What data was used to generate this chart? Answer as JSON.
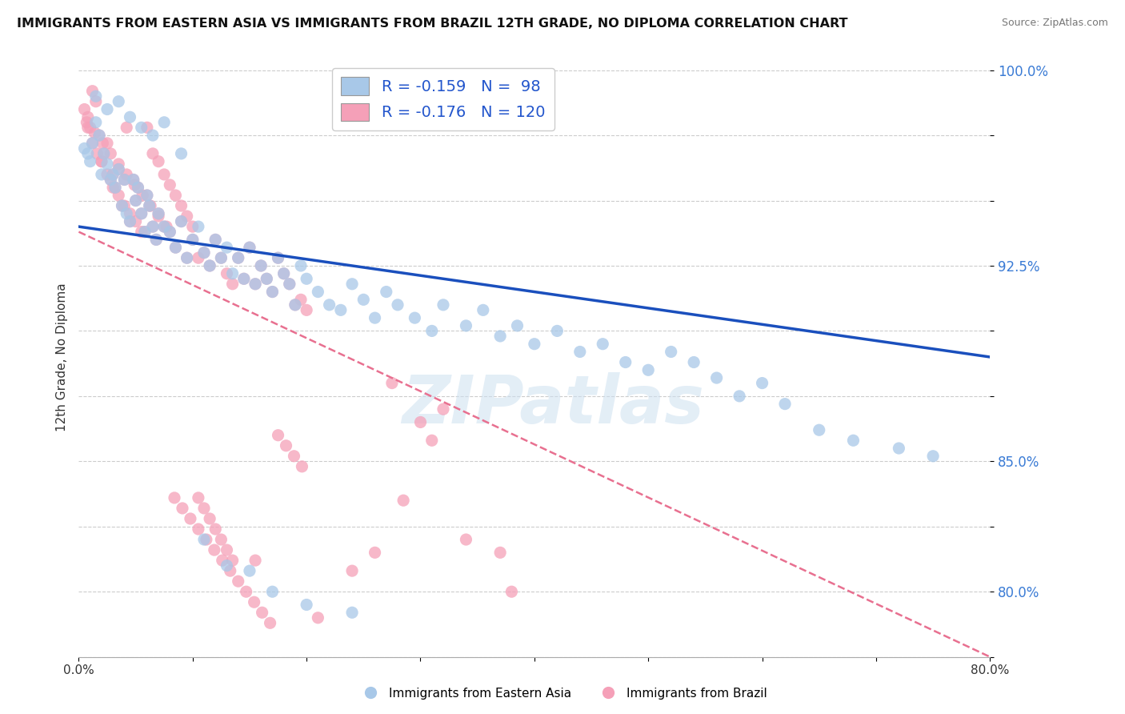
{
  "title": "IMMIGRANTS FROM EASTERN ASIA VS IMMIGRANTS FROM BRAZIL 12TH GRADE, NO DIPLOMA CORRELATION CHART",
  "source": "Source: ZipAtlas.com",
  "ylabel": "12th Grade, No Diploma",
  "x_min": 0.0,
  "x_max": 0.8,
  "y_min": 0.775,
  "y_max": 1.005,
  "ytick_positions": [
    0.775,
    0.8,
    0.825,
    0.85,
    0.875,
    0.9,
    0.925,
    0.95,
    0.975,
    1.0
  ],
  "ytick_labels": [
    "",
    "80.0%",
    "",
    "85.0%",
    "",
    "",
    "92.5%",
    "",
    "",
    "100.0%"
  ],
  "xtick_positions": [
    0.0,
    0.1,
    0.2,
    0.3,
    0.4,
    0.5,
    0.6,
    0.7,
    0.8
  ],
  "xtick_labels": [
    "0.0%",
    "",
    "",
    "",
    "",
    "",
    "",
    "",
    "80.0%"
  ],
  "blue_color": "#a8c8e8",
  "pink_color": "#f5a0b8",
  "blue_line_color": "#1a4fbd",
  "pink_line_color": "#e87090",
  "legend_label_blue": "Immigrants from Eastern Asia",
  "legend_label_pink": "Immigrants from Brazil",
  "watermark": "ZIPatlas",
  "blue_line_x0": 0.0,
  "blue_line_y0": 0.94,
  "blue_line_x1": 0.8,
  "blue_line_y1": 0.89,
  "pink_line_x0": 0.0,
  "pink_line_y0": 0.938,
  "pink_line_x1": 0.8,
  "pink_line_y1": 0.775,
  "blue_scatter_x": [
    0.005,
    0.008,
    0.01,
    0.012,
    0.015,
    0.018,
    0.02,
    0.022,
    0.025,
    0.028,
    0.03,
    0.032,
    0.035,
    0.038,
    0.04,
    0.042,
    0.045,
    0.048,
    0.05,
    0.052,
    0.055,
    0.058,
    0.06,
    0.062,
    0.065,
    0.068,
    0.07,
    0.075,
    0.08,
    0.085,
    0.09,
    0.095,
    0.1,
    0.105,
    0.11,
    0.115,
    0.12,
    0.125,
    0.13,
    0.135,
    0.14,
    0.145,
    0.15,
    0.155,
    0.16,
    0.165,
    0.17,
    0.175,
    0.18,
    0.185,
    0.19,
    0.195,
    0.2,
    0.21,
    0.22,
    0.23,
    0.24,
    0.25,
    0.26,
    0.27,
    0.28,
    0.295,
    0.31,
    0.32,
    0.34,
    0.355,
    0.37,
    0.385,
    0.4,
    0.42,
    0.44,
    0.46,
    0.48,
    0.5,
    0.52,
    0.54,
    0.56,
    0.58,
    0.6,
    0.62,
    0.65,
    0.68,
    0.72,
    0.75,
    0.015,
    0.025,
    0.035,
    0.045,
    0.055,
    0.065,
    0.075,
    0.09,
    0.11,
    0.13,
    0.15,
    0.17,
    0.2,
    0.24
  ],
  "blue_scatter_y": [
    0.97,
    0.968,
    0.965,
    0.972,
    0.98,
    0.975,
    0.96,
    0.968,
    0.964,
    0.958,
    0.96,
    0.955,
    0.962,
    0.948,
    0.958,
    0.945,
    0.942,
    0.958,
    0.95,
    0.955,
    0.945,
    0.938,
    0.952,
    0.948,
    0.94,
    0.935,
    0.945,
    0.94,
    0.938,
    0.932,
    0.942,
    0.928,
    0.935,
    0.94,
    0.93,
    0.925,
    0.935,
    0.928,
    0.932,
    0.922,
    0.928,
    0.92,
    0.932,
    0.918,
    0.925,
    0.92,
    0.915,
    0.928,
    0.922,
    0.918,
    0.91,
    0.925,
    0.92,
    0.915,
    0.91,
    0.908,
    0.918,
    0.912,
    0.905,
    0.915,
    0.91,
    0.905,
    0.9,
    0.91,
    0.902,
    0.908,
    0.898,
    0.902,
    0.895,
    0.9,
    0.892,
    0.895,
    0.888,
    0.885,
    0.892,
    0.888,
    0.882,
    0.875,
    0.88,
    0.872,
    0.862,
    0.858,
    0.855,
    0.852,
    0.99,
    0.985,
    0.988,
    0.982,
    0.978,
    0.975,
    0.98,
    0.968,
    0.82,
    0.81,
    0.808,
    0.8,
    0.795,
    0.792
  ],
  "pink_scatter_x": [
    0.005,
    0.008,
    0.01,
    0.012,
    0.015,
    0.018,
    0.02,
    0.022,
    0.025,
    0.028,
    0.03,
    0.032,
    0.035,
    0.038,
    0.04,
    0.042,
    0.045,
    0.048,
    0.05,
    0.052,
    0.055,
    0.058,
    0.06,
    0.062,
    0.065,
    0.068,
    0.07,
    0.075,
    0.08,
    0.085,
    0.09,
    0.095,
    0.1,
    0.105,
    0.11,
    0.115,
    0.12,
    0.125,
    0.13,
    0.135,
    0.14,
    0.145,
    0.15,
    0.155,
    0.16,
    0.165,
    0.17,
    0.175,
    0.18,
    0.185,
    0.19,
    0.195,
    0.2,
    0.008,
    0.012,
    0.016,
    0.02,
    0.025,
    0.03,
    0.035,
    0.04,
    0.045,
    0.05,
    0.055,
    0.06,
    0.065,
    0.07,
    0.075,
    0.08,
    0.085,
    0.09,
    0.095,
    0.1,
    0.105,
    0.11,
    0.115,
    0.12,
    0.125,
    0.13,
    0.135,
    0.007,
    0.014,
    0.021,
    0.028,
    0.035,
    0.042,
    0.049,
    0.056,
    0.063,
    0.07,
    0.077,
    0.084,
    0.091,
    0.098,
    0.105,
    0.112,
    0.119,
    0.126,
    0.133,
    0.14,
    0.147,
    0.154,
    0.161,
    0.168,
    0.175,
    0.182,
    0.189,
    0.196,
    0.155,
    0.21,
    0.24,
    0.26,
    0.285,
    0.31,
    0.34,
    0.37,
    0.38,
    0.32,
    0.3,
    0.275
  ],
  "pink_scatter_y": [
    0.985,
    0.982,
    0.978,
    0.992,
    0.988,
    0.975,
    0.965,
    0.968,
    0.972,
    0.958,
    0.96,
    0.955,
    0.962,
    0.948,
    0.958,
    0.978,
    0.942,
    0.958,
    0.95,
    0.955,
    0.945,
    0.938,
    0.952,
    0.948,
    0.94,
    0.935,
    0.945,
    0.94,
    0.938,
    0.932,
    0.942,
    0.928,
    0.935,
    0.928,
    0.93,
    0.925,
    0.935,
    0.928,
    0.922,
    0.918,
    0.928,
    0.92,
    0.932,
    0.918,
    0.925,
    0.92,
    0.915,
    0.928,
    0.922,
    0.918,
    0.91,
    0.912,
    0.908,
    0.978,
    0.972,
    0.968,
    0.965,
    0.96,
    0.955,
    0.952,
    0.948,
    0.945,
    0.942,
    0.938,
    0.978,
    0.968,
    0.965,
    0.96,
    0.956,
    0.952,
    0.948,
    0.944,
    0.94,
    0.836,
    0.832,
    0.828,
    0.824,
    0.82,
    0.816,
    0.812,
    0.98,
    0.976,
    0.972,
    0.968,
    0.964,
    0.96,
    0.956,
    0.952,
    0.948,
    0.944,
    0.94,
    0.836,
    0.832,
    0.828,
    0.824,
    0.82,
    0.816,
    0.812,
    0.808,
    0.804,
    0.8,
    0.796,
    0.792,
    0.788,
    0.86,
    0.856,
    0.852,
    0.848,
    0.812,
    0.79,
    0.808,
    0.815,
    0.835,
    0.858,
    0.82,
    0.815,
    0.8,
    0.87,
    0.865,
    0.88
  ]
}
